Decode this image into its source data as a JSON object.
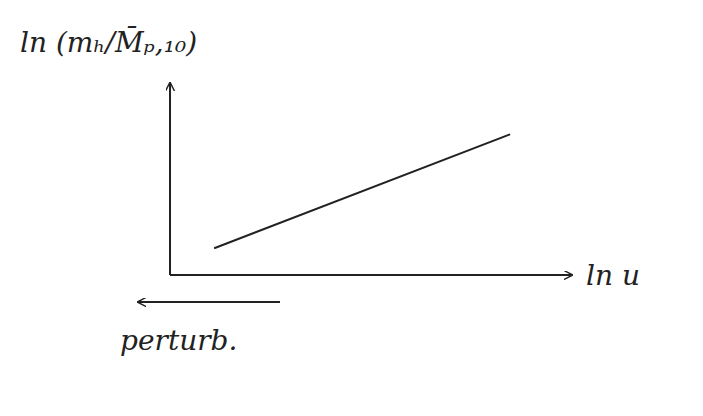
{
  "chart_data": {
    "type": "line",
    "x_label": "ln u",
    "y_label": "ln (mₕ/M̄ₚ,₁₀)",
    "x": [
      1.15,
      8.7
    ],
    "values": [
      1.5,
      7.8
    ],
    "color": "#222222",
    "xlim": [
      0,
      10
    ],
    "ylim": [
      0,
      10
    ],
    "xticks": [],
    "yticks": [],
    "tick_labels": false,
    "grid": false,
    "annotations": [
      {
        "text": "perturb."
      }
    ]
  }
}
